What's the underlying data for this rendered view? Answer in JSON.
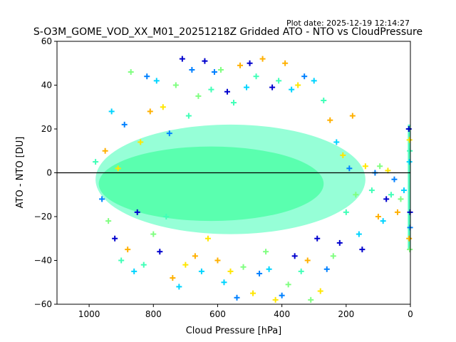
{
  "plot_date": "Plot date: 2025-12-19 12:14:27",
  "chart_data": {
    "type": "scatter",
    "title": "S-O3M_GOME_VOD_XX_M01_20251218Z Gridded ATO - NTO vs CloudPressure",
    "xlabel": "Cloud Pressure [hPa]",
    "ylabel": "ATO - NTO [DU]",
    "xlim": [
      1100,
      0
    ],
    "ylim": [
      -60,
      60
    ],
    "x_reversed": true,
    "xticks": [
      1000,
      800,
      600,
      400,
      200,
      0
    ],
    "yticks": [
      -60,
      -40,
      -20,
      0,
      20,
      40,
      60
    ],
    "grid": false,
    "marker": "+",
    "reference_line_y": 0,
    "colors": [
      "#0000cd",
      "#0080ff",
      "#00d4ff",
      "#40ffb7",
      "#80ff80",
      "#ffe600",
      "#ffb000"
    ],
    "points": [
      [
        980,
        5
      ],
      [
        960,
        -12
      ],
      [
        950,
        10
      ],
      [
        940,
        -22
      ],
      [
        930,
        28
      ],
      [
        920,
        -30
      ],
      [
        910,
        2
      ],
      [
        900,
        -40
      ],
      [
        890,
        22
      ],
      [
        880,
        -35
      ],
      [
        870,
        46
      ],
      [
        860,
        -45
      ],
      [
        850,
        -18
      ],
      [
        840,
        14
      ],
      [
        830,
        -42
      ],
      [
        820,
        44
      ],
      [
        810,
        28
      ],
      [
        800,
        -28
      ],
      [
        790,
        42
      ],
      [
        780,
        -36
      ],
      [
        770,
        30
      ],
      [
        760,
        -20
      ],
      [
        750,
        18
      ],
      [
        740,
        -48
      ],
      [
        730,
        40
      ],
      [
        720,
        -52
      ],
      [
        710,
        52
      ],
      [
        700,
        -42
      ],
      [
        690,
        26
      ],
      [
        680,
        47
      ],
      [
        670,
        -38
      ],
      [
        660,
        35
      ],
      [
        650,
        -45
      ],
      [
        640,
        51
      ],
      [
        630,
        -30
      ],
      [
        620,
        38
      ],
      [
        610,
        46
      ],
      [
        600,
        -40
      ],
      [
        590,
        47
      ],
      [
        580,
        -50
      ],
      [
        570,
        37
      ],
      [
        560,
        -45
      ],
      [
        550,
        32
      ],
      [
        540,
        -57
      ],
      [
        530,
        49
      ],
      [
        520,
        -43
      ],
      [
        510,
        39
      ],
      [
        500,
        50
      ],
      [
        490,
        -55
      ],
      [
        480,
        44
      ],
      [
        470,
        -46
      ],
      [
        460,
        52
      ],
      [
        450,
        -36
      ],
      [
        440,
        -44
      ],
      [
        430,
        39
      ],
      [
        420,
        -58
      ],
      [
        410,
        42
      ],
      [
        400,
        -56
      ],
      [
        390,
        50
      ],
      [
        380,
        -51
      ],
      [
        370,
        38
      ],
      [
        360,
        -38
      ],
      [
        350,
        40
      ],
      [
        340,
        -45
      ],
      [
        330,
        44
      ],
      [
        320,
        -40
      ],
      [
        310,
        -58
      ],
      [
        300,
        42
      ],
      [
        290,
        -30
      ],
      [
        280,
        -54
      ],
      [
        270,
        33
      ],
      [
        260,
        -44
      ],
      [
        250,
        24
      ],
      [
        240,
        -38
      ],
      [
        230,
        14
      ],
      [
        220,
        -32
      ],
      [
        210,
        8
      ],
      [
        200,
        -18
      ],
      [
        190,
        2
      ],
      [
        180,
        26
      ],
      [
        170,
        -10
      ],
      [
        160,
        -28
      ],
      [
        150,
        -35
      ],
      [
        140,
        3
      ],
      [
        120,
        -8
      ],
      [
        110,
        0
      ],
      [
        100,
        -20
      ],
      [
        95,
        3
      ],
      [
        85,
        -22
      ],
      [
        75,
        -12
      ],
      [
        70,
        1
      ],
      [
        60,
        -10
      ],
      [
        50,
        -3
      ],
      [
        40,
        -18
      ],
      [
        30,
        -12
      ],
      [
        20,
        -8
      ],
      [
        5,
        20
      ],
      [
        3,
        15
      ],
      [
        2,
        10
      ],
      [
        1,
        -25
      ],
      [
        4,
        -30
      ],
      [
        2,
        -35
      ],
      [
        3,
        5
      ],
      [
        1,
        -18
      ]
    ]
  }
}
